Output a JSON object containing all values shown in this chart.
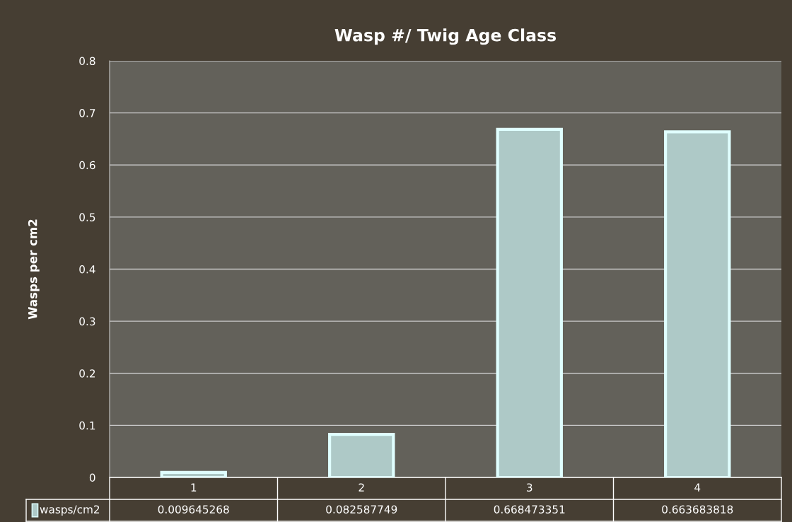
{
  "chart_data": {
    "type": "bar",
    "title": "Wasp #/ Twig Age Class",
    "ylabel": "Wasps per cm2",
    "categories": [
      "1",
      "2",
      "3",
      "4"
    ],
    "series": [
      {
        "name": "wasps/cm2",
        "color": "#aec9c7",
        "values": [
          0.009645268,
          0.082587749,
          0.668473351,
          0.663683818
        ]
      }
    ],
    "ylim": [
      0,
      0.8
    ],
    "yticks": [
      0,
      0.1,
      0.2,
      0.3,
      0.4,
      0.5,
      0.6,
      0.7,
      0.8
    ],
    "grid": "y",
    "data_labels": true
  }
}
